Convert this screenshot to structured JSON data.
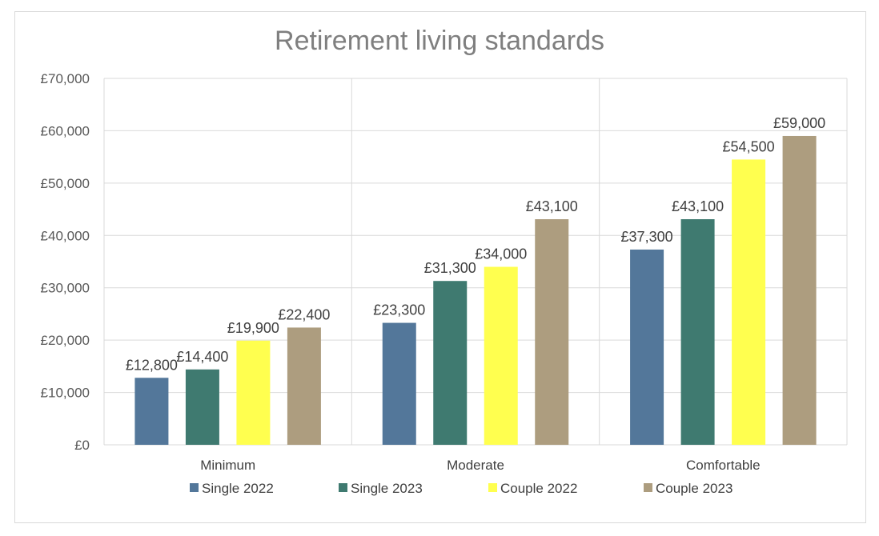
{
  "chart_data": {
    "type": "bar",
    "title": "Retirement living standards",
    "categories": [
      "Minimum",
      "Moderate",
      "Comfortable"
    ],
    "series": [
      {
        "name": "Single 2022",
        "color": "#53779a",
        "values": [
          12800,
          23300,
          37300
        ],
        "labels": [
          "£12,800",
          "£23,300",
          "£37,300"
        ]
      },
      {
        "name": "Single 2023",
        "color": "#3f7a70",
        "values": [
          14400,
          31300,
          43100
        ],
        "labels": [
          "£14,400",
          "£31,300",
          "£43,100"
        ]
      },
      {
        "name": "Couple 2022",
        "color": "#ffff4f",
        "values": [
          19900,
          34000,
          54500
        ],
        "labels": [
          "£19,900",
          "£34,000",
          "£54,500"
        ]
      },
      {
        "name": "Couple 2023",
        "color": "#ad9d7f",
        "values": [
          22400,
          43100,
          59000
        ],
        "labels": [
          "£22,400",
          "£43,100",
          "£59,000"
        ]
      }
    ],
    "yticks": [
      0,
      10000,
      20000,
      30000,
      40000,
      50000,
      60000,
      70000
    ],
    "yticklabels": [
      "£0",
      "£10,000",
      "£20,000",
      "£30,000",
      "£40,000",
      "£50,000",
      "£60,000",
      "£70,000"
    ],
    "ylim": [
      0,
      70000
    ],
    "grid": true,
    "legend": "bottom"
  }
}
